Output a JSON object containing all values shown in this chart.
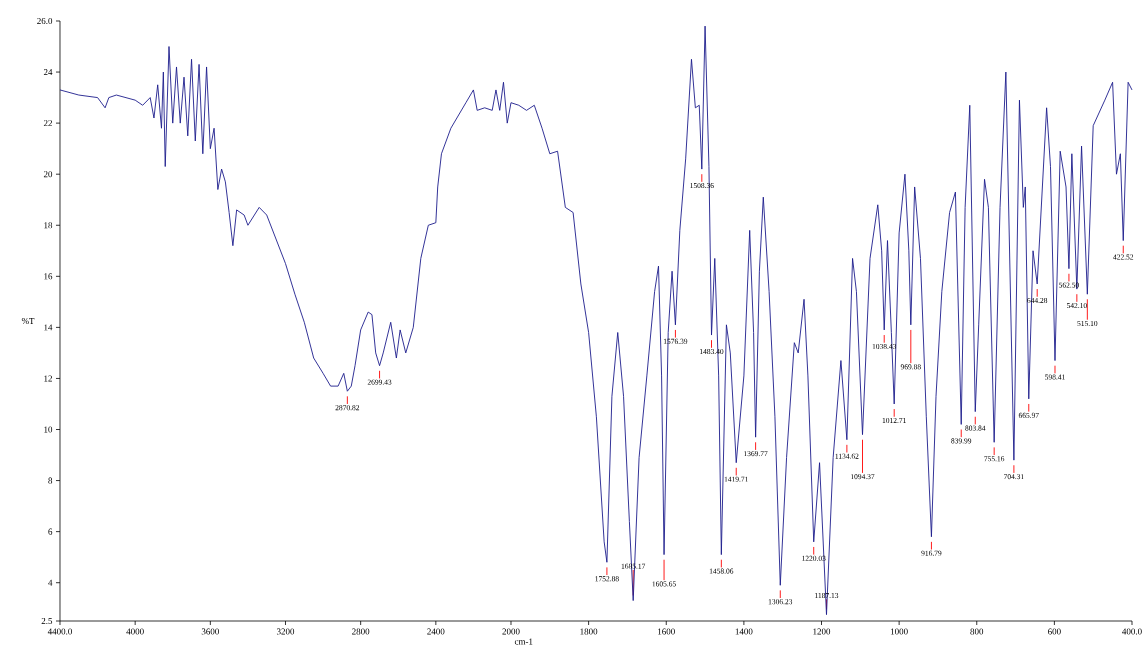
{
  "chart_data": [
    {
      "type": "line",
      "ylabel": "%T",
      "xlim": [
        4400,
        2000
      ],
      "ylim": [
        2.5,
        26
      ],
      "xticks": [
        {
          "value": 4400,
          "label": "4400.0"
        },
        4000,
        3600,
        3200,
        2800,
        2400,
        2000
      ],
      "yticks": [
        2.5,
        4,
        6,
        8,
        10,
        12,
        14,
        16,
        18,
        20,
        22,
        24,
        {
          "value": 26,
          "label": "26.0"
        }
      ],
      "grid": false,
      "marker": "none",
      "line_style": "solid",
      "series": [
        {
          "color": "#1c1c8c",
          "x": [
            4400,
            4300,
            4200,
            4160,
            4140,
            4100,
            4000,
            3960,
            3920,
            3900,
            3880,
            3860,
            3850,
            3840,
            3820,
            3800,
            3780,
            3760,
            3740,
            3720,
            3700,
            3680,
            3660,
            3640,
            3620,
            3600,
            3580,
            3560,
            3540,
            3520,
            3500,
            3480,
            3460,
            3420,
            3400,
            3340,
            3300,
            3200,
            3150,
            3100,
            3050,
            3000,
            2960,
            2920,
            2890,
            2870.82,
            2850,
            2830,
            2800,
            2760,
            2740,
            2720,
            2699.43,
            2680,
            2640,
            2610,
            2590,
            2560,
            2520,
            2480,
            2440,
            2400,
            2390,
            2370,
            2320,
            2240,
            2200,
            2180,
            2140,
            2100,
            2080,
            2060,
            2040,
            2020,
            2000
          ],
          "values": [
            23.3,
            23.1,
            23.0,
            22.6,
            23.0,
            23.1,
            22.9,
            22.7,
            23.0,
            22.2,
            23.5,
            21.8,
            24.0,
            20.3,
            25.0,
            22.0,
            24.2,
            22.0,
            23.8,
            21.5,
            24.5,
            21.3,
            24.3,
            20.8,
            24.2,
            21.0,
            21.8,
            19.4,
            20.2,
            19.7,
            18.5,
            17.2,
            18.6,
            18.4,
            18.0,
            18.7,
            18.4,
            16.5,
            15.3,
            14.2,
            12.8,
            12.2,
            11.7,
            11.7,
            12.2,
            11.5,
            11.7,
            12.5,
            13.9,
            14.6,
            14.5,
            13.0,
            12.5,
            13.0,
            14.2,
            12.8,
            13.9,
            13.0,
            14.0,
            16.7,
            18.0,
            18.1,
            19.5,
            20.8,
            21.8,
            22.8,
            23.3,
            22.5,
            22.6,
            22.5,
            23.3,
            22.5,
            23.6,
            22.0,
            22.8
          ]
        }
      ],
      "annotations": [
        {
          "text": "2870.82",
          "x": 2870.82,
          "y": 11.5
        },
        {
          "text": "2699.43",
          "x": 2699.43,
          "y": 12.5
        }
      ]
    },
    {
      "type": "line",
      "xlabel": "cm-1",
      "xlim": [
        2000,
        400
      ],
      "ylim": [
        2.5,
        26
      ],
      "tick_labels": "x",
      "xticks": [
        1800,
        1600,
        1400,
        1200,
        1000,
        800,
        600,
        {
          "value": 400,
          "label": "400.0"
        }
      ],
      "grid": false,
      "marker": "none",
      "line_style": "solid",
      "series": [
        {
          "color": "#1c1c8c",
          "x": [
            2000,
            1980,
            1960,
            1940,
            1920,
            1900,
            1880,
            1860,
            1840,
            1820,
            1800,
            1780,
            1760,
            1752.88,
            1740,
            1725,
            1710,
            1695,
            1685.17,
            1670,
            1650,
            1630,
            1620,
            1612,
            1605.65,
            1595,
            1585,
            1576.39,
            1565,
            1550,
            1535,
            1525,
            1515,
            1508.36,
            1500,
            1490,
            1483.4,
            1475,
            1465,
            1458.06,
            1445,
            1435,
            1419.71,
            1400,
            1385,
            1375,
            1369.77,
            1360,
            1350,
            1335,
            1320,
            1306.23,
            1290,
            1270,
            1260,
            1245,
            1235,
            1220.03,
            1205,
            1187.13,
            1170,
            1150,
            1134.62,
            1120,
            1110,
            1094.37,
            1075,
            1055,
            1045,
            1038.43,
            1030,
            1020,
            1012.71,
            1000,
            985,
            975,
            969.88,
            960,
            945,
            930,
            916.79,
            905,
            890,
            870,
            855,
            839.99,
            830,
            818,
            803.84,
            795,
            780,
            770,
            755.16,
            740,
            725,
            704.31,
            690,
            680,
            675,
            665.97,
            655,
            644.28,
            620,
            610,
            598.41,
            585,
            570,
            562.5,
            555,
            542.1,
            530,
            515.1,
            500,
            470,
            450,
            440,
            430,
            422.52,
            410,
            400
          ],
          "values": [
            22.8,
            22.7,
            22.5,
            22.7,
            21.8,
            20.8,
            20.9,
            18.7,
            18.5,
            15.7,
            13.8,
            10.5,
            5.6,
            4.8,
            11.3,
            13.8,
            11.3,
            6.4,
            3.3,
            8.9,
            12.1,
            15.4,
            16.4,
            12.1,
            5.1,
            13.8,
            16.2,
            14.1,
            17.8,
            20.6,
            24.5,
            22.6,
            22.7,
            20.2,
            25.8,
            20.3,
            13.7,
            16.7,
            12.1,
            5.1,
            14.1,
            13.0,
            8.7,
            12.1,
            17.8,
            13.8,
            9.7,
            16.2,
            19.1,
            15.4,
            10.5,
            3.9,
            8.9,
            13.4,
            13.0,
            15.1,
            12.1,
            5.6,
            8.7,
            2.75,
            8.9,
            12.7,
            9.6,
            16.7,
            15.4,
            9.8,
            16.7,
            18.8,
            17.0,
            13.9,
            17.4,
            13.8,
            11.0,
            17.7,
            20.0,
            17.0,
            14.1,
            19.5,
            16.7,
            10.5,
            5.8,
            11.3,
            15.4,
            18.5,
            19.3,
            10.2,
            18.7,
            22.7,
            10.7,
            14.1,
            19.8,
            18.7,
            9.5,
            18.7,
            24.0,
            8.8,
            22.9,
            18.7,
            19.5,
            11.2,
            17.0,
            15.7,
            22.6,
            20.3,
            12.7,
            20.9,
            19.5,
            16.3,
            20.8,
            15.5,
            21.1,
            15.3,
            21.9,
            22.9,
            23.6,
            20.0,
            20.8,
            17.4,
            23.6,
            23.3
          ]
        }
      ],
      "annotations": [
        {
          "text": "1752.88",
          "x": 1752.88,
          "y": 4.8
        },
        {
          "text": "1685.17",
          "x": 1685.17,
          "y": 3.3
        },
        {
          "text": "1605.65",
          "x": 1605.65,
          "y": 5.1
        },
        {
          "text": "1576.39",
          "x": 1576.39,
          "y": 14.1
        },
        {
          "text": "1508.36",
          "x": 1508.36,
          "y": 20.2
        },
        {
          "text": "1483.40",
          "x": 1483.4,
          "y": 13.7
        },
        {
          "text": "1458.06",
          "x": 1458.06,
          "y": 5.1
        },
        {
          "text": "1419.71",
          "x": 1419.71,
          "y": 8.7
        },
        {
          "text": "1369.77",
          "x": 1369.77,
          "y": 9.7
        },
        {
          "text": "1306.23",
          "x": 1306.23,
          "y": 3.9
        },
        {
          "text": "1220.03",
          "x": 1220.03,
          "y": 5.6
        },
        {
          "text": "1187.13",
          "x": 1187.13,
          "y": 2.75
        },
        {
          "text": "1134.62",
          "x": 1134.62,
          "y": 9.6
        },
        {
          "text": "1094.37",
          "x": 1094.37,
          "y": 9.8
        },
        {
          "text": "1038.43",
          "x": 1038.43,
          "y": 13.9
        },
        {
          "text": "1012.71",
          "x": 1012.71,
          "y": 11.0
        },
        {
          "text": "969.88",
          "x": 969.88,
          "y": 14.1
        },
        {
          "text": "916.79",
          "x": 916.79,
          "y": 5.8
        },
        {
          "text": "839.99",
          "x": 839.99,
          "y": 10.2
        },
        {
          "text": "803.84",
          "x": 803.84,
          "y": 10.7
        },
        {
          "text": "755.16",
          "x": 755.16,
          "y": 9.5
        },
        {
          "text": "704.31",
          "x": 704.31,
          "y": 8.8
        },
        {
          "text": "665.97",
          "x": 665.97,
          "y": 11.2
        },
        {
          "text": "644.28",
          "x": 644.28,
          "y": 15.7
        },
        {
          "text": "598.41",
          "x": 598.41,
          "y": 12.7
        },
        {
          "text": "562.50",
          "x": 562.5,
          "y": 16.3
        },
        {
          "text": "542.10",
          "x": 542.1,
          "y": 15.5
        },
        {
          "text": "515.10",
          "x": 515.1,
          "y": 15.3
        },
        {
          "text": "422.52",
          "x": 422.52,
          "y": 17.4
        }
      ]
    }
  ]
}
